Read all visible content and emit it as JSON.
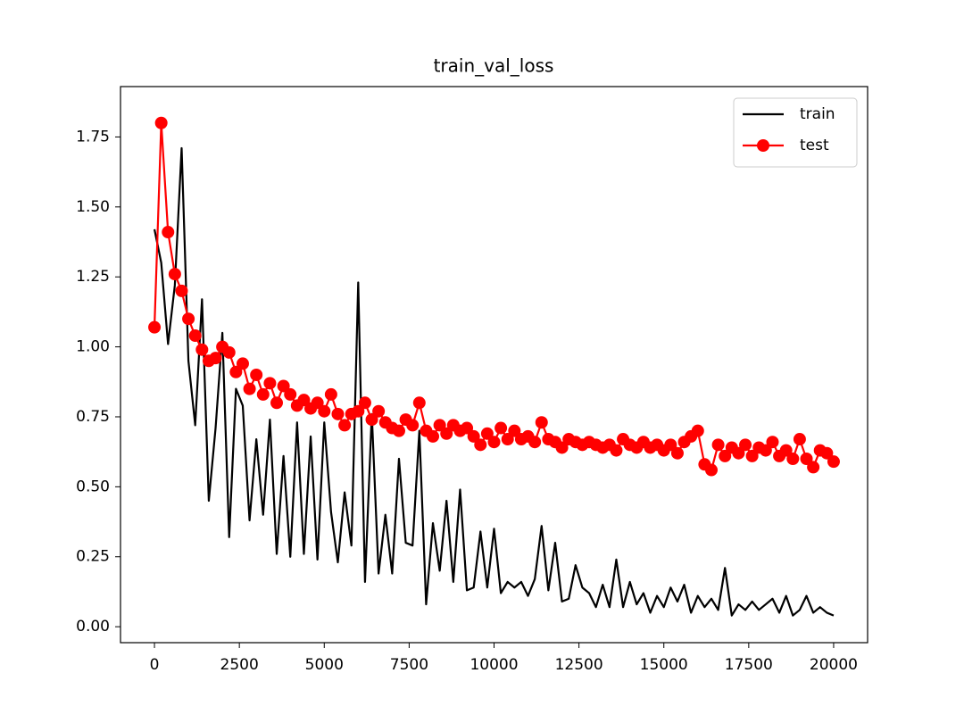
{
  "chart_data": {
    "type": "line",
    "title": "train_val_loss",
    "x": [
      0,
      200,
      400,
      600,
      800,
      1000,
      1200,
      1400,
      1600,
      1800,
      2000,
      2200,
      2400,
      2600,
      2800,
      3000,
      3200,
      3400,
      3600,
      3800,
      4000,
      4200,
      4400,
      4600,
      4800,
      5000,
      5200,
      5400,
      5600,
      5800,
      6000,
      6200,
      6400,
      6600,
      6800,
      7000,
      7200,
      7400,
      7600,
      7800,
      8000,
      8200,
      8400,
      8600,
      8800,
      9000,
      9200,
      9400,
      9600,
      9800,
      10000,
      10200,
      10400,
      10600,
      10800,
      11000,
      11200,
      11400,
      11600,
      11800,
      12000,
      12200,
      12400,
      12600,
      12800,
      13000,
      13200,
      13400,
      13600,
      13800,
      14000,
      14200,
      14400,
      14600,
      14800,
      15000,
      15200,
      15400,
      15600,
      15800,
      16000,
      16200,
      16400,
      16600,
      16800,
      17000,
      17200,
      17400,
      17600,
      17800,
      18000,
      18200,
      18400,
      18600,
      18800,
      19000,
      19200,
      19400,
      19600,
      19800,
      20000
    ],
    "series": [
      {
        "name": "train",
        "color": "#000000",
        "marker": false,
        "values": [
          1.42,
          1.3,
          1.01,
          1.22,
          1.71,
          0.95,
          0.72,
          1.17,
          0.45,
          0.71,
          1.05,
          0.32,
          0.85,
          0.79,
          0.38,
          0.67,
          0.4,
          0.74,
          0.26,
          0.61,
          0.25,
          0.73,
          0.26,
          0.68,
          0.24,
          0.73,
          0.41,
          0.23,
          0.48,
          0.29,
          1.23,
          0.16,
          0.76,
          0.19,
          0.4,
          0.19,
          0.6,
          0.3,
          0.29,
          0.7,
          0.08,
          0.37,
          0.2,
          0.45,
          0.16,
          0.49,
          0.13,
          0.14,
          0.34,
          0.14,
          0.35,
          0.12,
          0.16,
          0.14,
          0.16,
          0.11,
          0.17,
          0.36,
          0.13,
          0.3,
          0.09,
          0.1,
          0.22,
          0.14,
          0.12,
          0.07,
          0.15,
          0.07,
          0.24,
          0.07,
          0.16,
          0.08,
          0.12,
          0.05,
          0.11,
          0.07,
          0.14,
          0.09,
          0.15,
          0.05,
          0.11,
          0.07,
          0.1,
          0.06,
          0.21,
          0.04,
          0.08,
          0.06,
          0.09,
          0.06,
          0.08,
          0.1,
          0.05,
          0.11,
          0.04,
          0.06,
          0.11,
          0.05,
          0.07,
          0.05,
          0.04
        ]
      },
      {
        "name": "test",
        "color": "#ff0000",
        "marker": true,
        "values": [
          1.07,
          1.8,
          1.41,
          1.26,
          1.2,
          1.1,
          1.04,
          0.99,
          0.95,
          0.96,
          1.0,
          0.98,
          0.91,
          0.94,
          0.85,
          0.9,
          0.83,
          0.87,
          0.8,
          0.86,
          0.83,
          0.79,
          0.81,
          0.78,
          0.8,
          0.77,
          0.83,
          0.76,
          0.72,
          0.76,
          0.77,
          0.8,
          0.74,
          0.77,
          0.73,
          0.71,
          0.7,
          0.74,
          0.72,
          0.8,
          0.7,
          0.68,
          0.72,
          0.69,
          0.72,
          0.7,
          0.71,
          0.68,
          0.65,
          0.69,
          0.66,
          0.71,
          0.67,
          0.7,
          0.67,
          0.68,
          0.66,
          0.73,
          0.67,
          0.66,
          0.64,
          0.67,
          0.66,
          0.65,
          0.66,
          0.65,
          0.64,
          0.65,
          0.63,
          0.67,
          0.65,
          0.64,
          0.66,
          0.64,
          0.65,
          0.63,
          0.65,
          0.62,
          0.66,
          0.68,
          0.7,
          0.58,
          0.56,
          0.65,
          0.61,
          0.64,
          0.62,
          0.65,
          0.61,
          0.64,
          0.63,
          0.66,
          0.61,
          0.63,
          0.6,
          0.67,
          0.6,
          0.57,
          0.63,
          0.62,
          0.59
        ]
      }
    ],
    "xlim": [
      -1000,
      21000
    ],
    "ylim": [
      -0.057,
      1.93
    ],
    "xticks": [
      0,
      2500,
      5000,
      7500,
      10000,
      12500,
      15000,
      17500,
      20000
    ],
    "yticks": [
      {
        "value": 0,
        "label": "0.00"
      },
      0.25,
      {
        "value": 0.5,
        "label": "0.50"
      },
      0.75,
      {
        "value": 1,
        "label": "1.00"
      },
      1.25,
      {
        "value": 1.5,
        "label": "1.50"
      },
      1.75
    ],
    "grid": false,
    "legend": "upper right"
  }
}
